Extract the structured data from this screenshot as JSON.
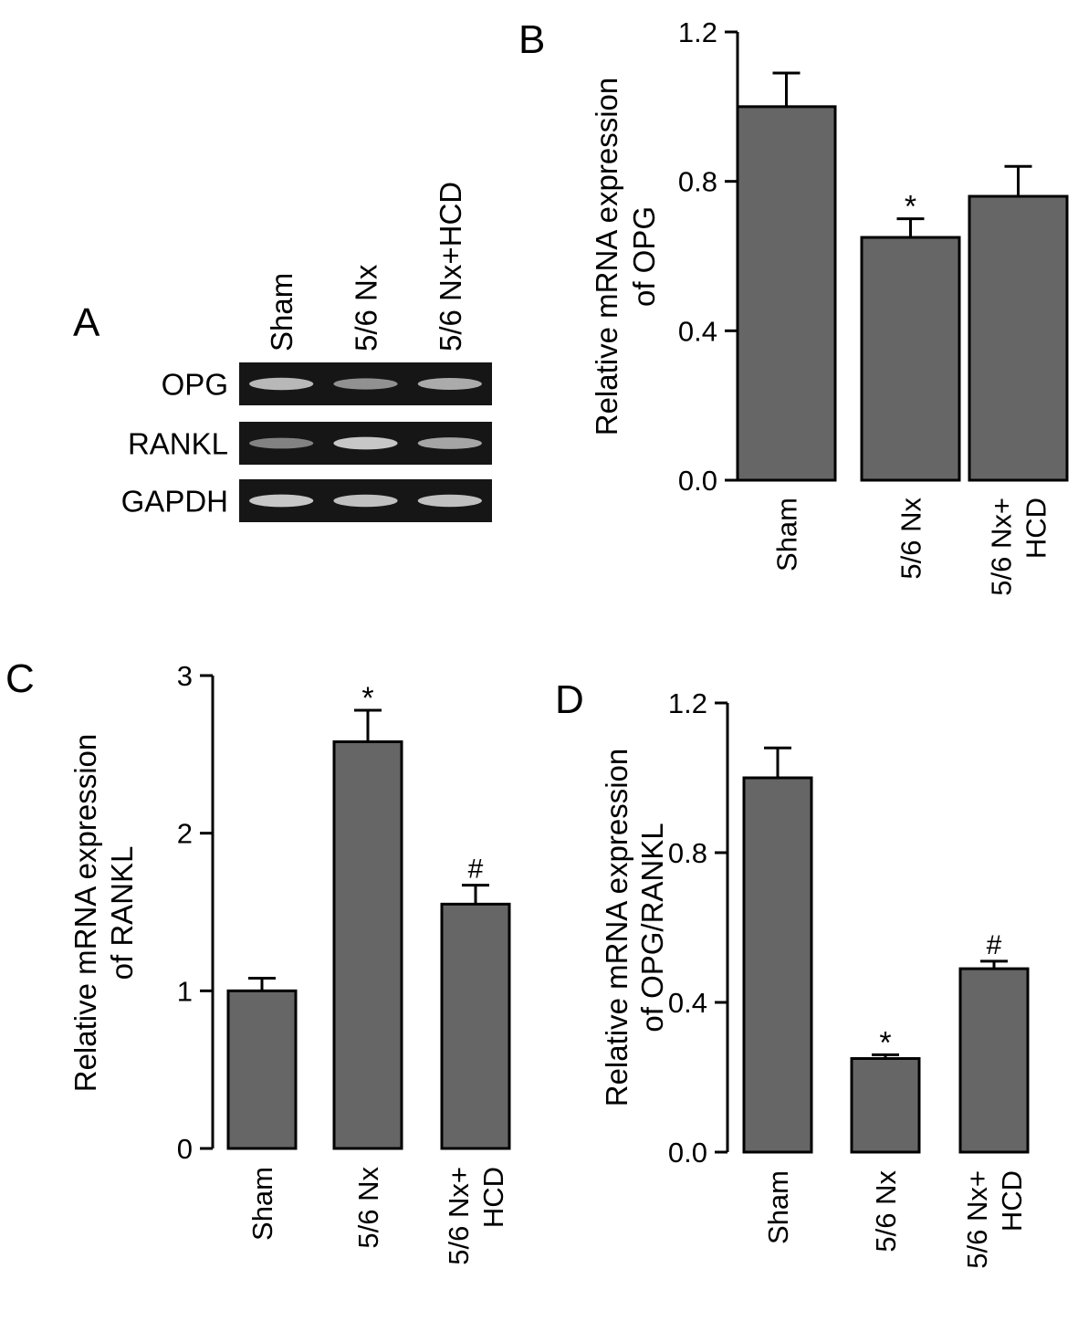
{
  "figure": {
    "panel_labels": [
      "A",
      "B",
      "C",
      "D"
    ],
    "colors": {
      "bar": "#666666",
      "axis": "#000000",
      "gel_bg": "#161616",
      "band": "#d8d8d8"
    }
  },
  "gel": {
    "lanes": [
      "Sham",
      "5/6 Nx",
      "5/6 Nx+HCD"
    ],
    "rows": [
      {
        "label": "OPG",
        "intensity": [
          0.85,
          0.55,
          0.75
        ]
      },
      {
        "label": "RANKL",
        "intensity": [
          0.45,
          0.95,
          0.7
        ]
      },
      {
        "label": "GAPDH",
        "intensity": [
          0.95,
          0.9,
          0.9
        ]
      }
    ]
  },
  "chart_data": [
    {
      "panel": "B",
      "type": "bar",
      "categories": [
        [
          "Sham"
        ],
        [
          "5/6 Nx"
        ],
        [
          "5/6 Nx+",
          "HCD"
        ]
      ],
      "values": [
        1.0,
        0.65,
        0.76
      ],
      "errors": [
        0.09,
        0.05,
        0.08
      ],
      "annotations": [
        "",
        "*",
        ""
      ],
      "ylabel": [
        "Relative mRNA expression",
        "of OPG"
      ],
      "ylim": [
        0,
        1.2
      ],
      "yticks": [
        0.0,
        0.4,
        0.8,
        1.2
      ],
      "ytick_labels": [
        "0.0",
        "0.4",
        "0.8",
        "1.2"
      ]
    },
    {
      "panel": "C",
      "type": "bar",
      "categories": [
        [
          "Sham"
        ],
        [
          "5/6 Nx"
        ],
        [
          "5/6 Nx+",
          "HCD"
        ]
      ],
      "values": [
        1.0,
        2.58,
        1.55
      ],
      "errors": [
        0.08,
        0.2,
        0.12
      ],
      "annotations": [
        "",
        "*",
        "#"
      ],
      "ylabel": [
        "Relative mRNA expression",
        "of RANKL"
      ],
      "ylim": [
        0,
        3
      ],
      "yticks": [
        0,
        1,
        2,
        3
      ],
      "ytick_labels": [
        "0",
        "1",
        "2",
        "3"
      ]
    },
    {
      "panel": "D",
      "type": "bar",
      "categories": [
        [
          "Sham"
        ],
        [
          "5/6 Nx"
        ],
        [
          "5/6 Nx+",
          "HCD"
        ]
      ],
      "values": [
        1.0,
        0.25,
        0.49
      ],
      "errors": [
        0.08,
        0.01,
        0.02
      ],
      "annotations": [
        "",
        "*",
        "#"
      ],
      "ylabel": [
        "Relative mRNA expression",
        "of OPG/RANKL"
      ],
      "ylim": [
        0,
        1.2
      ],
      "yticks": [
        0.0,
        0.4,
        0.8,
        1.2
      ],
      "ytick_labels": [
        "0.0",
        "0.4",
        "0.8",
        "1.2"
      ]
    }
  ]
}
